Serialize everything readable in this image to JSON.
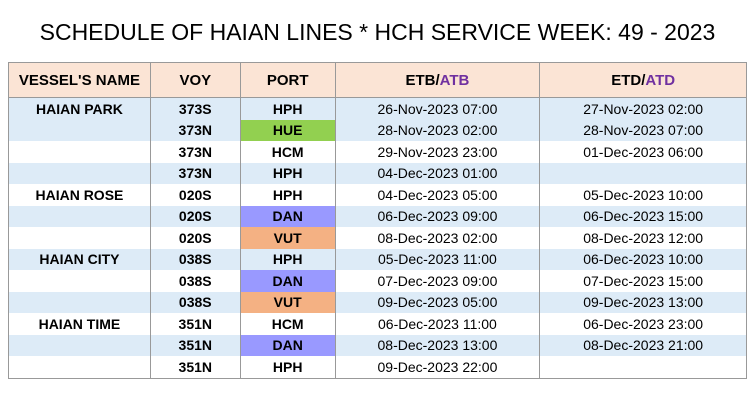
{
  "title": "SCHEDULE OF HAIAN LINES * HCH SERVICE WEEK: 49 - 2023",
  "header": {
    "vessel": "VESSEL'S NAME",
    "voy": "VOY",
    "port": "PORT",
    "etb": "ETB/",
    "atb": "ATB",
    "etd": "ETD/",
    "atd": "ATD"
  },
  "rows": [
    [
      "HAIAN PARK",
      "373S",
      "HPH",
      "26-Nov-2023 07:00",
      "27-Nov-2023 02:00"
    ],
    [
      null,
      "373N",
      "HUE",
      "28-Nov-2023 02:00",
      "28-Nov-2023 07:00"
    ],
    [
      null,
      "373N",
      "HCM",
      "29-Nov-2023 23:00",
      "01-Dec-2023 06:00"
    ],
    [
      null,
      "373N",
      "HPH",
      "04-Dec-2023 01:00",
      null
    ],
    [
      "HAIAN ROSE",
      "020S",
      "HPH",
      "04-Dec-2023 05:00",
      "05-Dec-2023 10:00"
    ],
    [
      null,
      "020S",
      "DAN",
      "06-Dec-2023 09:00",
      "06-Dec-2023 15:00"
    ],
    [
      null,
      "020S",
      "VUT",
      "08-Dec-2023 02:00",
      "08-Dec-2023 12:00"
    ],
    [
      "HAIAN CITY",
      "038S",
      "HPH",
      "05-Dec-2023 11:00",
      "06-Dec-2023 10:00"
    ],
    [
      null,
      "038S",
      "DAN",
      "07-Dec-2023 09:00",
      "07-Dec-2023 15:00"
    ],
    [
      null,
      "038S",
      "VUT",
      "09-Dec-2023 05:00",
      "09-Dec-2023 13:00"
    ],
    [
      "HAIAN TIME",
      "351N",
      "HCM",
      "06-Dec-2023 11:00",
      "06-Dec-2023 23:00"
    ],
    [
      null,
      "351N",
      "DAN",
      "08-Dec-2023 13:00",
      "08-Dec-2023 21:00"
    ],
    [
      null,
      "351N",
      "HPH",
      "09-Dec-2023 22:00",
      null
    ]
  ]
}
